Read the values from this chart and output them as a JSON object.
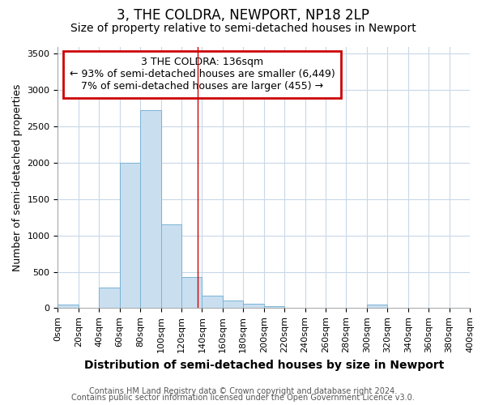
{
  "title": "3, THE COLDRA, NEWPORT, NP18 2LP",
  "subtitle": "Size of property relative to semi-detached houses in Newport",
  "xlabel": "Distribution of semi-detached houses by size in Newport",
  "ylabel": "Number of semi-detached properties",
  "footnote1": "Contains HM Land Registry data © Crown copyright and database right 2024.",
  "footnote2": "Contains public sector information licensed under the Open Government Licence v3.0.",
  "annotation_title": "3 THE COLDRA: 136sqm",
  "annotation_line2": "← 93% of semi-detached houses are smaller (6,449)",
  "annotation_line3": "7% of semi-detached houses are larger (455) →",
  "property_size": 136,
  "bar_edges": [
    0,
    20,
    40,
    60,
    80,
    100,
    120,
    140,
    160,
    180,
    200,
    220,
    240,
    260,
    280,
    300,
    320,
    340,
    360,
    380,
    400
  ],
  "bar_heights": [
    50,
    0,
    280,
    2000,
    2720,
    1150,
    430,
    170,
    100,
    60,
    30,
    0,
    0,
    0,
    0,
    50,
    0,
    0,
    0,
    0
  ],
  "bar_color": "#c9dff0",
  "bar_edge_color": "#7ab3d4",
  "vline_color": "#cc0000",
  "annotation_box_color": "#ffffff",
  "annotation_box_edge": "#cc0000",
  "ylim": [
    0,
    3600
  ],
  "xlim": [
    0,
    400
  ],
  "background_color": "#ffffff",
  "plot_background": "#ffffff",
  "grid_color": "#c8d8e8",
  "title_fontsize": 12,
  "subtitle_fontsize": 10,
  "xlabel_fontsize": 10,
  "ylabel_fontsize": 9,
  "tick_fontsize": 8,
  "annotation_fontsize": 9,
  "footnote_fontsize": 7
}
